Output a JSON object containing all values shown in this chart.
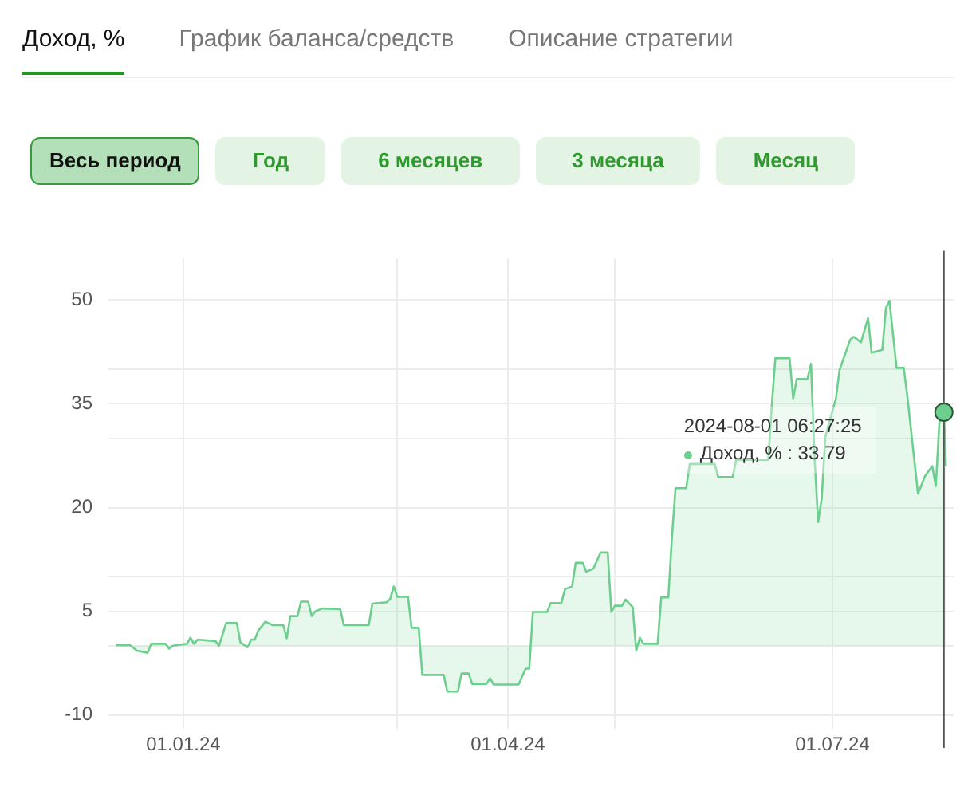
{
  "chart_data": {
    "type": "area",
    "title": "Доход, %",
    "x": [
      "2023-12-13",
      "2023-12-17",
      "2023-12-19",
      "2023-12-22",
      "2023-12-23",
      "2023-12-27",
      "2023-12-28",
      "2023-12-29",
      "2023-12-30",
      "2024-01-02",
      "2024-01-03",
      "2024-01-04",
      "2024-01-05",
      "2024-01-10",
      "2024-01-11",
      "2024-01-13",
      "2024-01-16",
      "2024-01-17",
      "2024-01-19",
      "2024-01-20",
      "2024-01-21",
      "2024-01-22",
      "2024-01-24",
      "2024-01-26",
      "2024-01-29",
      "2024-01-30",
      "2024-01-31",
      "2024-02-02",
      "2024-02-03",
      "2024-02-05",
      "2024-02-06",
      "2024-02-07",
      "2024-02-09",
      "2024-02-14",
      "2024-02-15",
      "2024-02-22",
      "2024-02-23",
      "2024-02-27",
      "2024-02-28",
      "2024-02-29",
      "2024-03-01",
      "2024-03-04",
      "2024-03-05",
      "2024-03-07",
      "2024-03-08",
      "2024-03-14",
      "2024-03-15",
      "2024-03-18",
      "2024-03-19",
      "2024-03-21",
      "2024-03-22",
      "2024-03-26",
      "2024-03-27",
      "2024-03-28",
      "2024-04-04",
      "2024-04-06",
      "2024-04-07",
      "2024-04-08",
      "2024-04-12",
      "2024-04-13",
      "2024-04-16",
      "2024-04-17",
      "2024-04-19",
      "2024-04-20",
      "2024-04-22",
      "2024-04-23",
      "2024-04-25",
      "2024-04-27",
      "2024-04-29",
      "2024-04-30",
      "2024-05-01",
      "2024-05-03",
      "2024-05-04",
      "2024-05-06",
      "2024-05-07",
      "2024-05-08",
      "2024-05-09",
      "2024-05-13",
      "2024-05-14",
      "2024-05-16",
      "2024-05-17",
      "2024-05-18",
      "2024-05-21",
      "2024-05-22",
      "2024-05-29",
      "2024-05-30",
      "2024-06-03",
      "2024-06-04",
      "2024-06-13",
      "2024-06-14",
      "2024-06-15",
      "2024-06-19",
      "2024-06-20",
      "2024-06-21",
      "2024-06-24",
      "2024-06-25",
      "2024-06-26",
      "2024-06-27",
      "2024-06-28",
      "2024-06-29",
      "2024-07-02",
      "2024-07-03",
      "2024-07-06",
      "2024-07-07",
      "2024-07-09",
      "2024-07-11",
      "2024-07-12",
      "2024-07-15",
      "2024-07-16",
      "2024-07-17",
      "2024-07-19",
      "2024-07-21",
      "2024-07-22",
      "2024-07-25",
      "2024-07-27",
      "2024-07-29",
      "2024-07-30",
      "2024-07-31",
      "2024-08-01T06:27",
      "2024-08-01T20:00"
    ],
    "series": [
      {
        "color": "#6ccf8e",
        "values": [
          0.1,
          0.1,
          -0.7,
          -1.0,
          0.3,
          0.3,
          -0.4,
          0,
          0.1,
          0.3,
          1.2,
          0.3,
          0.9,
          0.7,
          0,
          3.3,
          3.3,
          0.5,
          -0.2,
          0.9,
          0.9,
          2.2,
          3.5,
          3.0,
          3.0,
          1.1,
          4.3,
          4.3,
          6.4,
          6.4,
          4.3,
          5.0,
          5.4,
          5.3,
          3.0,
          3.0,
          6.1,
          6.3,
          6.8,
          8.6,
          7.1,
          7.1,
          2.6,
          2.6,
          -4.2,
          -4.2,
          -6.6,
          -6.6,
          -4.0,
          -4.0,
          -5.5,
          -5.5,
          -4.7,
          -5.6,
          -5.6,
          -3.3,
          -3.3,
          4.9,
          4.9,
          6.2,
          6.2,
          8.2,
          8.6,
          12.0,
          12.0,
          10.7,
          11.2,
          13.5,
          13.5,
          4.9,
          5.8,
          5.8,
          6.7,
          5.6,
          -0.7,
          1.2,
          0.3,
          0.3,
          7.0,
          7.0,
          15.7,
          22.8,
          22.8,
          26.3,
          26.3,
          24.4,
          24.4,
          26.9,
          26.9,
          34.7,
          41.6,
          41.6,
          35.8,
          38.6,
          38.6,
          40.8,
          27.2,
          17.9,
          21.3,
          30.2,
          35.8,
          39.9,
          44.3,
          44.7,
          43.9,
          47.4,
          42.4,
          42.8,
          48.8,
          49.9,
          40.2,
          40.2,
          36.2,
          22.0,
          24.6,
          26.0,
          23.1,
          32.4,
          33.79,
          26.0
        ]
      }
    ],
    "xlim": [
      "2023-12-11",
      "2024-08-04"
    ],
    "xticks": [
      {
        "value": "2024-01-01",
        "label": "01.01.24"
      },
      {
        "value": "2024-03-01",
        "label": null
      },
      {
        "value": "2024-04-01",
        "label": "01.04.24"
      },
      {
        "value": "2024-05-01",
        "label": null
      },
      {
        "value": "2024-07-01",
        "label": "01.07.24"
      }
    ],
    "ylim": [
      -12,
      56
    ],
    "yticks": [
      -10,
      {
        "value": 0,
        "label": null
      },
      5,
      {
        "value": 10,
        "label": null
      },
      20,
      {
        "value": 30,
        "label": null
      },
      35,
      {
        "value": 40,
        "label": null
      },
      50
    ],
    "grid": true,
    "legend": false,
    "marker": "none",
    "ref_lines": [
      {
        "axis": "x",
        "value": "2024-08-01T06:27",
        "color": "#555555"
      }
    ],
    "annotations": [
      "График баланса/средств",
      "Описание стратегии",
      "Весь период",
      "Год",
      "6 месяцев",
      "3 месяца",
      "Месяц",
      "2024-08-01 06:27:25",
      "Доход, % : 33.79"
    ]
  }
}
